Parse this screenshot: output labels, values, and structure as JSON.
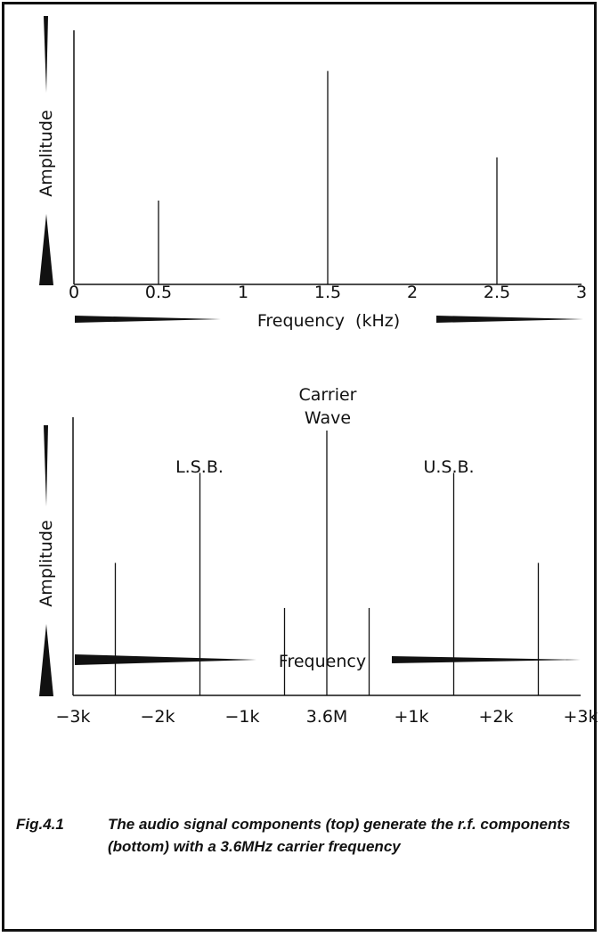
{
  "colors": {
    "ink": "#111111",
    "background": "#ffffff"
  },
  "chart_data": [
    {
      "type": "bar",
      "style": "line-spectrum",
      "ylabel": "Amplitude",
      "xlabel": "Frequency  (kHz)",
      "x": [
        0.5,
        1.5,
        2.5
      ],
      "values": [
        0.33,
        0.84,
        0.5
      ],
      "xlim": [
        0,
        3
      ],
      "ylim": [
        0,
        1
      ],
      "ticks": [
        0,
        0.5,
        1,
        1.5,
        2,
        2.5,
        3
      ],
      "tick_labels": [
        "0",
        "0.5",
        "1",
        "1.5",
        "2",
        "2.5",
        "3"
      ],
      "grid": false,
      "legend": "none"
    },
    {
      "type": "bar",
      "style": "line-spectrum",
      "ylabel": "Amplitude",
      "xlabel": "Frequency",
      "x": [
        -2.5,
        -1.5,
        -0.5,
        0,
        0.5,
        1.5,
        2.5
      ],
      "values": [
        0.5,
        0.84,
        0.33,
        1.0,
        0.33,
        0.84,
        0.5
      ],
      "xlim": [
        -3,
        3
      ],
      "ylim": [
        0,
        1.05
      ],
      "ticks": [
        -3,
        -2,
        -1,
        0,
        1,
        2,
        3
      ],
      "tick_labels": [
        "−3k",
        "−2k",
        "−1k",
        "3.6M",
        "+1k",
        "+2k",
        "+3k"
      ],
      "annotations": {
        "carrier": [
          "Carrier",
          "Wave"
        ],
        "lsb": "L.S.B.",
        "usb": "U.S.B."
      },
      "grid": false,
      "legend": "none"
    }
  ],
  "caption": {
    "fig": "Fig.4.1",
    "text": "The audio signal components (top) generate the r.f. components (bottom) with a 3.6MHz carrier frequency"
  }
}
